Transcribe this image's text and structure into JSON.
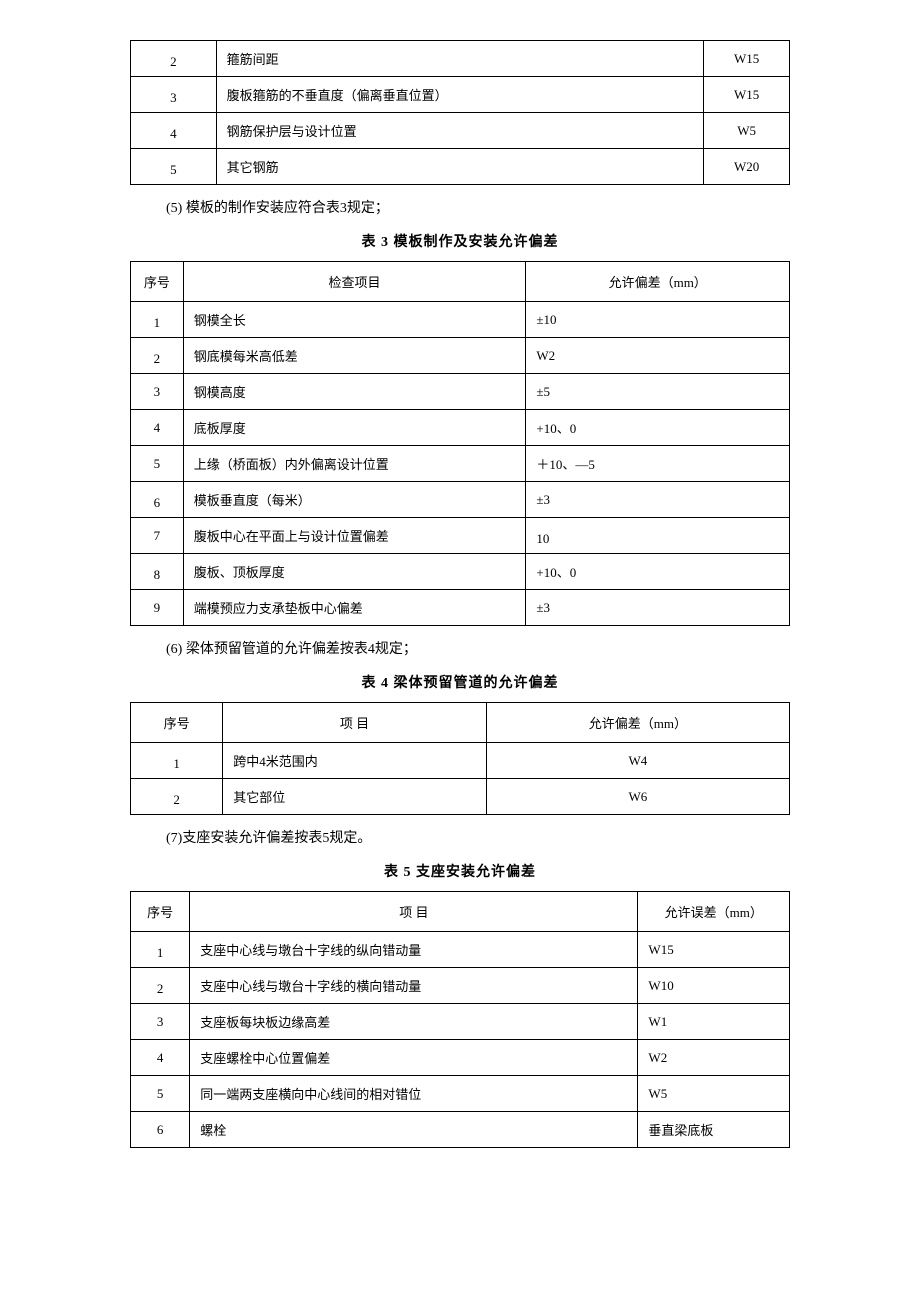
{
  "table1": {
    "rows": [
      {
        "n": "2",
        "item": "箍筋间距",
        "tol": "W15"
      },
      {
        "n": "3",
        "item": "腹板箍筋的不垂直度（偏离垂直位置）",
        "tol": "W15"
      },
      {
        "n": "4",
        "item": "钢筋保护层与设计位置",
        "tol": "W5"
      },
      {
        "n": "5",
        "item": "其它钢筋",
        "tol": "W20"
      }
    ]
  },
  "para5": "(5) 模板的制作安装应符合表3规定；",
  "caption3": "表 3 模板制作及安装允许偏差",
  "table3": {
    "h1": "序号",
    "h2": "检查项目",
    "h3": "允许偏差（mm）",
    "rows": [
      {
        "n": "1",
        "item": "钢模全长",
        "tol": "±10"
      },
      {
        "n": "2",
        "item": "钢底模每米高低差",
        "tol": "W2"
      },
      {
        "n": "3",
        "item": "钢模高度",
        "tol": "±5"
      },
      {
        "n": "4",
        "item": "底板厚度",
        "tol": "+10、0"
      },
      {
        "n": "5",
        "item": "上缘（桥面板）内外偏离设计位置",
        "tol": "＋10、—5"
      },
      {
        "n": "6",
        "item": "模板垂直度（每米）",
        "tol": "±3"
      },
      {
        "n": "7",
        "item": "腹板中心在平面上与设计位置偏差",
        "tol": "10"
      },
      {
        "n": "8",
        "item": "腹板、顶板厚度",
        "tol": "+10、0"
      },
      {
        "n": "9",
        "item": "端模预应力支承垫板中心偏差",
        "tol": "±3"
      }
    ]
  },
  "para6": "(6) 梁体预留管道的允许偏差按表4规定；",
  "caption4": "表 4 梁体预留管道的允许偏差",
  "table4": {
    "h1": "序号",
    "h2": "项 目",
    "h3": "允许偏差（mm）",
    "rows": [
      {
        "n": "1",
        "item": "跨中4米范围内",
        "tol": "W4"
      },
      {
        "n": "2",
        "item": "其它部位",
        "tol": "W6"
      }
    ]
  },
  "para7": "(7)支座安装允许偏差按表5规定。",
  "caption5": "表 5 支座安装允许偏差",
  "table5": {
    "h1": "序号",
    "h2": "项        目",
    "h3": "允许误差（mm）",
    "rows": [
      {
        "n": "1",
        "item": "支座中心线与墩台十字线的纵向错动量",
        "tol": "W15"
      },
      {
        "n": "2",
        "item": "支座中心线与墩台十字线的横向错动量",
        "tol": "W10"
      },
      {
        "n": "3",
        "item": "支座板每块板边缘高差",
        "tol": "W1"
      },
      {
        "n": "4",
        "item": "支座螺栓中心位置偏差",
        "tol": "W2"
      },
      {
        "n": "5",
        "item": "同一端两支座横向中心线间的相对错位",
        "tol": "W5"
      },
      {
        "n": "6",
        "item": "螺栓",
        "tol": "垂直梁底板"
      }
    ]
  }
}
